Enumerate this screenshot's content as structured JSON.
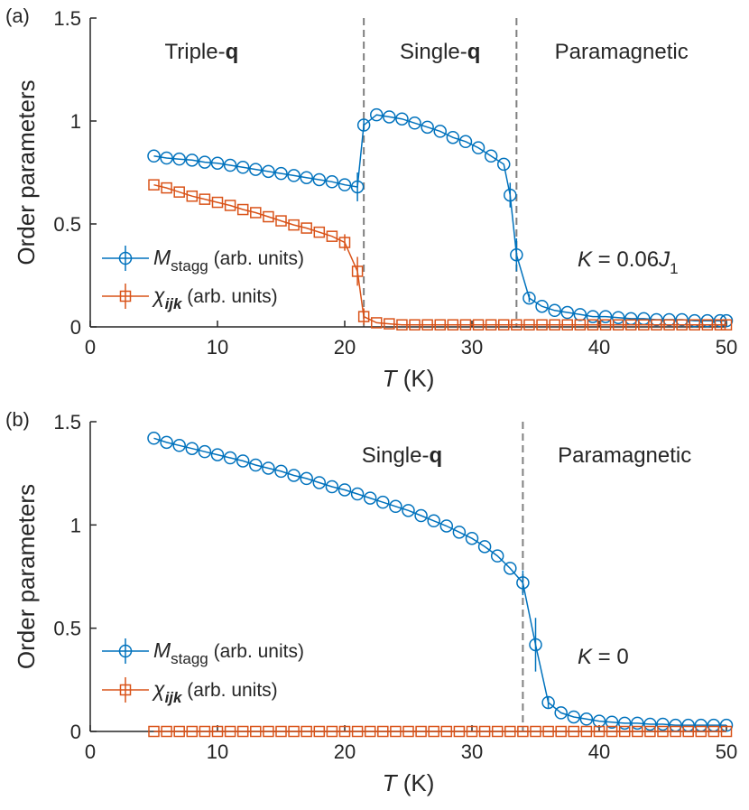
{
  "colors": {
    "m_stagg": "#0072BD",
    "chi_ijk": "#D95319",
    "axis": "#262626",
    "transition_line": "#808080"
  },
  "chart_data": [
    {
      "type": "line",
      "panel_label": "(a)",
      "xlabel_var": "T",
      "xlabel_unit": " (K)",
      "ylabel": "Order parameters",
      "xlim": [
        0,
        50
      ],
      "ylim": [
        0,
        1.5
      ],
      "xticks": [
        "0",
        "10",
        "20",
        "30",
        "40",
        "50"
      ],
      "yticks": [
        "0",
        "0.5",
        "1",
        "1.5"
      ],
      "grid": false,
      "legend_position": "left",
      "regions": [
        {
          "text": "Triple-",
          "bold": "q"
        },
        {
          "text": "Single-",
          "bold": "q"
        },
        {
          "text": "Paramagnetic",
          "bold": ""
        }
      ],
      "transitions": [
        21.5,
        33.5
      ],
      "annotation": {
        "k": "K",
        "eq": " = 0.06",
        "j": "J",
        "sub": "1"
      },
      "legend": [
        {
          "series": "M",
          "sub": "stagg",
          "suffix": " (arb. units)"
        },
        {
          "series": "χ",
          "sub": "ijk",
          "suffix": " (arb. units)"
        }
      ],
      "series": [
        {
          "marker": "circle",
          "color": "#0072BD",
          "x": [
            5,
            6,
            7,
            8,
            9,
            10,
            11,
            12,
            13,
            14,
            15,
            16,
            17,
            18,
            19,
            20,
            21,
            21.5,
            22.5,
            23.5,
            24.5,
            25.5,
            26.5,
            27.5,
            28.5,
            29.5,
            30.5,
            31.5,
            32.5,
            33,
            33.5,
            34.5,
            35.5,
            36.5,
            37.5,
            38.5,
            39.5,
            40.5,
            41.5,
            42.5,
            43.5,
            44.5,
            45.5,
            46.5,
            47.5,
            48.5,
            49.5,
            50
          ],
          "y": [
            0.83,
            0.82,
            0.815,
            0.81,
            0.8,
            0.795,
            0.785,
            0.775,
            0.765,
            0.755,
            0.745,
            0.735,
            0.725,
            0.715,
            0.705,
            0.69,
            0.68,
            0.98,
            1.03,
            1.02,
            1.01,
            0.99,
            0.97,
            0.95,
            0.92,
            0.9,
            0.87,
            0.83,
            0.79,
            0.64,
            0.35,
            0.14,
            0.1,
            0.08,
            0.07,
            0.06,
            0.05,
            0.05,
            0.045,
            0.04,
            0.04,
            0.035,
            0.035,
            0.035,
            0.03,
            0.03,
            0.03,
            0.03
          ],
          "err": [
            0,
            0,
            0,
            0,
            0,
            0,
            0,
            0,
            0,
            0,
            0,
            0,
            0,
            0,
            0,
            0,
            0.07,
            0.03,
            0,
            0,
            0,
            0,
            0,
            0,
            0,
            0,
            0,
            0,
            0,
            0.06,
            0.08,
            0.02,
            0,
            0,
            0,
            0,
            0,
            0,
            0,
            0,
            0,
            0,
            0,
            0,
            0,
            0,
            0,
            0
          ]
        },
        {
          "marker": "square",
          "color": "#D95319",
          "x": [
            5,
            6,
            7,
            8,
            9,
            10,
            11,
            12,
            13,
            14,
            15,
            16,
            17,
            18,
            19,
            20,
            21,
            21.5,
            22.5,
            23.5,
            24.5,
            25.5,
            26.5,
            27.5,
            28.5,
            29.5,
            30.5,
            31.5,
            32.5,
            33.5,
            34.5,
            35.5,
            36.5,
            37.5,
            38.5,
            39.5,
            40.5,
            41.5,
            42.5,
            43.5,
            44.5,
            45.5,
            46.5,
            47.5,
            48.5,
            49.5,
            50
          ],
          "y": [
            0.69,
            0.675,
            0.655,
            0.635,
            0.62,
            0.605,
            0.59,
            0.57,
            0.555,
            0.535,
            0.515,
            0.495,
            0.48,
            0.46,
            0.44,
            0.41,
            0.27,
            0.05,
            0.02,
            0.015,
            0.01,
            0.01,
            0.01,
            0.01,
            0.01,
            0.01,
            0.01,
            0.01,
            0.01,
            0.01,
            0.01,
            0.01,
            0.01,
            0.01,
            0.01,
            0.01,
            0.01,
            0.01,
            0.01,
            0.01,
            0.01,
            0.01,
            0.01,
            0.01,
            0.01,
            0.01,
            0.01
          ],
          "err": [
            0,
            0,
            0,
            0,
            0,
            0,
            0,
            0,
            0,
            0,
            0,
            0,
            0,
            0,
            0,
            0.04,
            0.07,
            0.04,
            0,
            0,
            0,
            0,
            0,
            0,
            0,
            0,
            0,
            0,
            0,
            0,
            0,
            0,
            0,
            0,
            0,
            0,
            0,
            0,
            0,
            0,
            0,
            0,
            0,
            0,
            0,
            0,
            0
          ]
        }
      ]
    },
    {
      "type": "line",
      "panel_label": "(b)",
      "xlabel_var": "T",
      "xlabel_unit": " (K)",
      "ylabel": "Order parameters",
      "xlim": [
        0,
        50
      ],
      "ylim": [
        0,
        1.5
      ],
      "xticks": [
        "0",
        "10",
        "20",
        "30",
        "40",
        "50"
      ],
      "yticks": [
        "0",
        "0.5",
        "1",
        "1.5"
      ],
      "grid": false,
      "legend_position": "left",
      "regions": [
        {
          "text": "Single-",
          "bold": "q"
        },
        {
          "text": "Paramagnetic",
          "bold": ""
        }
      ],
      "transitions": [
        34
      ],
      "annotation": {
        "k": "K",
        "eq": " = 0",
        "j": "",
        "sub": ""
      },
      "legend": [
        {
          "series": "M",
          "sub": "stagg",
          "suffix": " (arb. units)"
        },
        {
          "series": "χ",
          "sub": "ijk",
          "suffix": " (arb. units)"
        }
      ],
      "series": [
        {
          "marker": "circle",
          "color": "#0072BD",
          "x": [
            5,
            6,
            7,
            8,
            9,
            10,
            11,
            12,
            13,
            14,
            15,
            16,
            17,
            18,
            19,
            20,
            21,
            22,
            23,
            24,
            25,
            26,
            27,
            28,
            29,
            30,
            31,
            32,
            33,
            34,
            35,
            36,
            37,
            38,
            39,
            40,
            41,
            42,
            43,
            44,
            45,
            46,
            47,
            48,
            49,
            50
          ],
          "y": [
            1.42,
            1.4,
            1.385,
            1.37,
            1.355,
            1.34,
            1.325,
            1.31,
            1.29,
            1.275,
            1.26,
            1.24,
            1.225,
            1.205,
            1.185,
            1.17,
            1.15,
            1.13,
            1.11,
            1.09,
            1.07,
            1.045,
            1.02,
            0.995,
            0.965,
            0.935,
            0.895,
            0.85,
            0.79,
            0.72,
            0.42,
            0.14,
            0.09,
            0.07,
            0.06,
            0.05,
            0.045,
            0.04,
            0.04,
            0.035,
            0.035,
            0.03,
            0.03,
            0.03,
            0.03,
            0.03
          ],
          "err": [
            0,
            0,
            0,
            0,
            0,
            0,
            0,
            0,
            0,
            0,
            0,
            0,
            0,
            0,
            0,
            0,
            0,
            0,
            0,
            0,
            0,
            0,
            0,
            0,
            0,
            0,
            0,
            0,
            0,
            0.06,
            0.13,
            0.03,
            0,
            0,
            0,
            0,
            0,
            0,
            0,
            0,
            0,
            0,
            0,
            0,
            0,
            0
          ]
        },
        {
          "marker": "square",
          "color": "#D95319",
          "x": [
            5,
            6,
            7,
            8,
            9,
            10,
            11,
            12,
            13,
            14,
            15,
            16,
            17,
            18,
            19,
            20,
            21,
            22,
            23,
            24,
            25,
            26,
            27,
            28,
            29,
            30,
            31,
            32,
            33,
            34,
            35,
            36,
            37,
            38,
            39,
            40,
            41,
            42,
            43,
            44,
            45,
            46,
            47,
            48,
            49,
            50
          ],
          "y": [
            0,
            0,
            0,
            0,
            0,
            0,
            0,
            0,
            0,
            0,
            0,
            0,
            0,
            0,
            0,
            0,
            0,
            0,
            0,
            0,
            0,
            0,
            0,
            0,
            0,
            0,
            0,
            0,
            0,
            0,
            0,
            0,
            0,
            0,
            0,
            0,
            0,
            0,
            0,
            0,
            0,
            0,
            0,
            0,
            0,
            0
          ],
          "err": [
            0,
            0,
            0,
            0,
            0,
            0,
            0,
            0,
            0,
            0,
            0,
            0,
            0,
            0,
            0,
            0,
            0,
            0,
            0,
            0,
            0,
            0,
            0,
            0,
            0,
            0,
            0,
            0,
            0,
            0,
            0,
            0,
            0,
            0,
            0,
            0,
            0,
            0,
            0,
            0,
            0,
            0,
            0,
            0,
            0,
            0
          ]
        }
      ]
    }
  ]
}
